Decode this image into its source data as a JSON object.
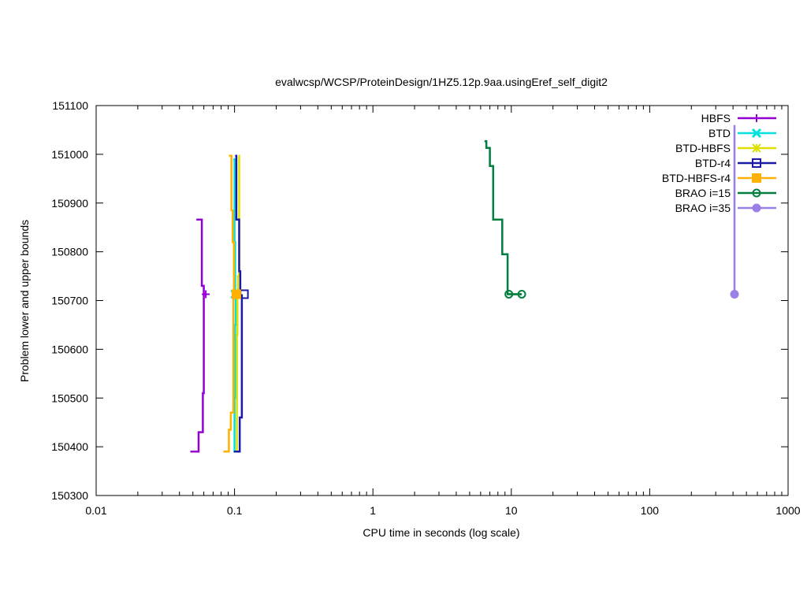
{
  "chart_data": {
    "type": "line",
    "title": "evalwcsp/WCSP/ProteinDesign/1HZ5.12p.9aa.usingEref_self_digit2",
    "xlabel": "CPU time in seconds (log scale)",
    "ylabel": "Problem lower and upper bounds",
    "xscale": "log",
    "xlim": [
      0.01,
      1000
    ],
    "ylim": [
      150300,
      151100
    ],
    "xticks": [
      {
        "value": 0.01,
        "label": "0.01"
      },
      {
        "value": 0.1,
        "label": "0.1"
      },
      {
        "value": 1,
        "label": "1"
      },
      {
        "value": 10,
        "label": "10"
      },
      {
        "value": 100,
        "label": "100"
      },
      {
        "value": 1000,
        "label": "1000"
      }
    ],
    "yticks": [
      {
        "value": 150300,
        "label": "150300"
      },
      {
        "value": 150400,
        "label": "150400"
      },
      {
        "value": 150500,
        "label": "150500"
      },
      {
        "value": 150600,
        "label": "150600"
      },
      {
        "value": 150700,
        "label": "150700"
      },
      {
        "value": 150800,
        "label": "150800"
      },
      {
        "value": 150900,
        "label": "150900"
      },
      {
        "value": 151000,
        "label": "151000"
      },
      {
        "value": 151100,
        "label": "151100"
      }
    ],
    "grid": false,
    "legend_position": "top-right",
    "series": [
      {
        "name": "HBFS",
        "color": "#9400d3",
        "marker": "plus",
        "lower": [
          [
            0.048,
            150390
          ],
          [
            0.055,
            150390
          ],
          [
            0.055,
            150430
          ],
          [
            0.059,
            150430
          ],
          [
            0.059,
            150510
          ],
          [
            0.06,
            150510
          ],
          [
            0.06,
            150713
          ]
        ],
        "upper": [
          [
            0.053,
            150866
          ],
          [
            0.058,
            150866
          ],
          [
            0.058,
            150730
          ],
          [
            0.06,
            150730
          ],
          [
            0.06,
            150713
          ]
        ],
        "markers": [
          [
            0.062,
            150713
          ]
        ]
      },
      {
        "name": "BTD",
        "color": "#00e0e0",
        "marker": "cross",
        "lower": [
          [
            0.098,
            150390
          ],
          [
            0.1,
            150390
          ],
          [
            0.1,
            150500
          ],
          [
            0.101,
            150500
          ],
          [
            0.101,
            150650
          ],
          [
            0.102,
            150650
          ],
          [
            0.102,
            150713
          ]
        ],
        "upper": [
          [
            0.098,
            150990
          ],
          [
            0.1,
            150990
          ],
          [
            0.1,
            150820
          ],
          [
            0.101,
            150820
          ],
          [
            0.101,
            150713
          ]
        ],
        "markers": [
          [
            0.101,
            150713
          ]
        ]
      },
      {
        "name": "BTD-HBFS",
        "color": "#e0e000",
        "marker": "star",
        "lower": [
          [
            0.1,
            150390
          ],
          [
            0.104,
            150390
          ],
          [
            0.104,
            150630
          ],
          [
            0.105,
            150630
          ],
          [
            0.105,
            150713
          ]
        ],
        "upper": [
          [
            0.107,
            150997
          ],
          [
            0.108,
            150997
          ],
          [
            0.108,
            150750
          ],
          [
            0.106,
            150750
          ],
          [
            0.106,
            150713
          ]
        ],
        "markers": [
          [
            0.105,
            150713
          ]
        ]
      },
      {
        "name": "BTD-r4",
        "color": "#1a1aa6",
        "marker": "square",
        "lower": [
          [
            0.099,
            150390
          ],
          [
            0.109,
            150390
          ],
          [
            0.109,
            150460
          ],
          [
            0.113,
            150460
          ],
          [
            0.113,
            150713
          ]
        ],
        "upper": [
          [
            0.101,
            150997
          ],
          [
            0.103,
            150997
          ],
          [
            0.103,
            150866
          ],
          [
            0.108,
            150866
          ],
          [
            0.108,
            150760
          ],
          [
            0.11,
            150760
          ],
          [
            0.11,
            150713
          ]
        ],
        "markers": [
          [
            0.117,
            150713
          ]
        ]
      },
      {
        "name": "BTD-HBFS-r4",
        "color": "#ffb000",
        "marker": "filled-square",
        "lower": [
          [
            0.083,
            150390
          ],
          [
            0.091,
            150390
          ],
          [
            0.091,
            150435
          ],
          [
            0.094,
            150435
          ],
          [
            0.094,
            150470
          ],
          [
            0.098,
            150470
          ],
          [
            0.098,
            150713
          ]
        ],
        "upper": [
          [
            0.091,
            150997
          ],
          [
            0.095,
            150997
          ],
          [
            0.095,
            150885
          ],
          [
            0.097,
            150885
          ],
          [
            0.097,
            150820
          ],
          [
            0.099,
            150820
          ],
          [
            0.099,
            150713
          ]
        ],
        "markers": [
          [
            0.103,
            150713
          ]
        ]
      },
      {
        "name": "BRAO i=15",
        "color": "#007f3f",
        "marker": "circle",
        "lower": [],
        "upper": [
          [
            6.4,
            151027
          ],
          [
            6.6,
            151027
          ],
          [
            6.6,
            151013
          ],
          [
            7.0,
            151013
          ],
          [
            7.0,
            150976
          ],
          [
            7.4,
            150976
          ],
          [
            7.4,
            150866
          ],
          [
            8.6,
            150866
          ],
          [
            8.6,
            150795
          ],
          [
            9.4,
            150795
          ],
          [
            9.4,
            150713
          ],
          [
            11.9,
            150713
          ]
        ],
        "markers": [
          [
            9.6,
            150713
          ],
          [
            11.9,
            150713
          ]
        ]
      },
      {
        "name": "BRAO i=35",
        "color": "#9a7fe6",
        "marker": "filled-circle",
        "lower": [],
        "upper": [
          [
            410,
            151060
          ],
          [
            410,
            150713
          ]
        ],
        "markers": [
          [
            410,
            150713
          ]
        ]
      }
    ]
  }
}
